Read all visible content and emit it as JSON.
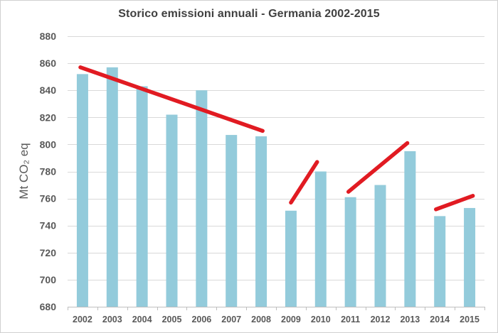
{
  "chart_data": {
    "type": "bar",
    "title": "Storico emissioni annuali - Germania 2002-2015",
    "ylabel": "Mt CO₂ eq",
    "xlabel": "",
    "categories": [
      "2002",
      "2003",
      "2004",
      "2005",
      "2006",
      "2007",
      "2008",
      "2009",
      "2010",
      "2011",
      "2012",
      "2013",
      "2014",
      "2015"
    ],
    "values": [
      852,
      857,
      843,
      822,
      840,
      807,
      806,
      751,
      780,
      761,
      770,
      795,
      747,
      753
    ],
    "ylim": [
      680,
      880
    ],
    "ytick_step": 20,
    "yticks": [
      880,
      860,
      840,
      820,
      800,
      780,
      760,
      740,
      720,
      700,
      680
    ],
    "grid": true,
    "legend": "none",
    "annotations": {
      "trend_lines": [
        {
          "year_start": 2001.93,
          "value_start": 857,
          "year_end": 2008.05,
          "value_end": 810
        },
        {
          "year_start": 2009.0,
          "value_start": 757,
          "year_end": 2009.88,
          "value_end": 787
        },
        {
          "year_start": 2010.93,
          "value_start": 765,
          "year_end": 2012.91,
          "value_end": 801
        },
        {
          "year_start": 2013.87,
          "value_start": 752,
          "year_end": 2015.11,
          "value_end": 762
        }
      ]
    },
    "colors": {
      "bar": "#93cbdb",
      "trend_line": "#e11b22",
      "title_text": "#404040",
      "axis_text": "#595959",
      "gridline": "#d9d9d9",
      "axis_line": "#bfbfbf",
      "background": "#ffffff",
      "frame_border": "#d0d0d0"
    }
  }
}
